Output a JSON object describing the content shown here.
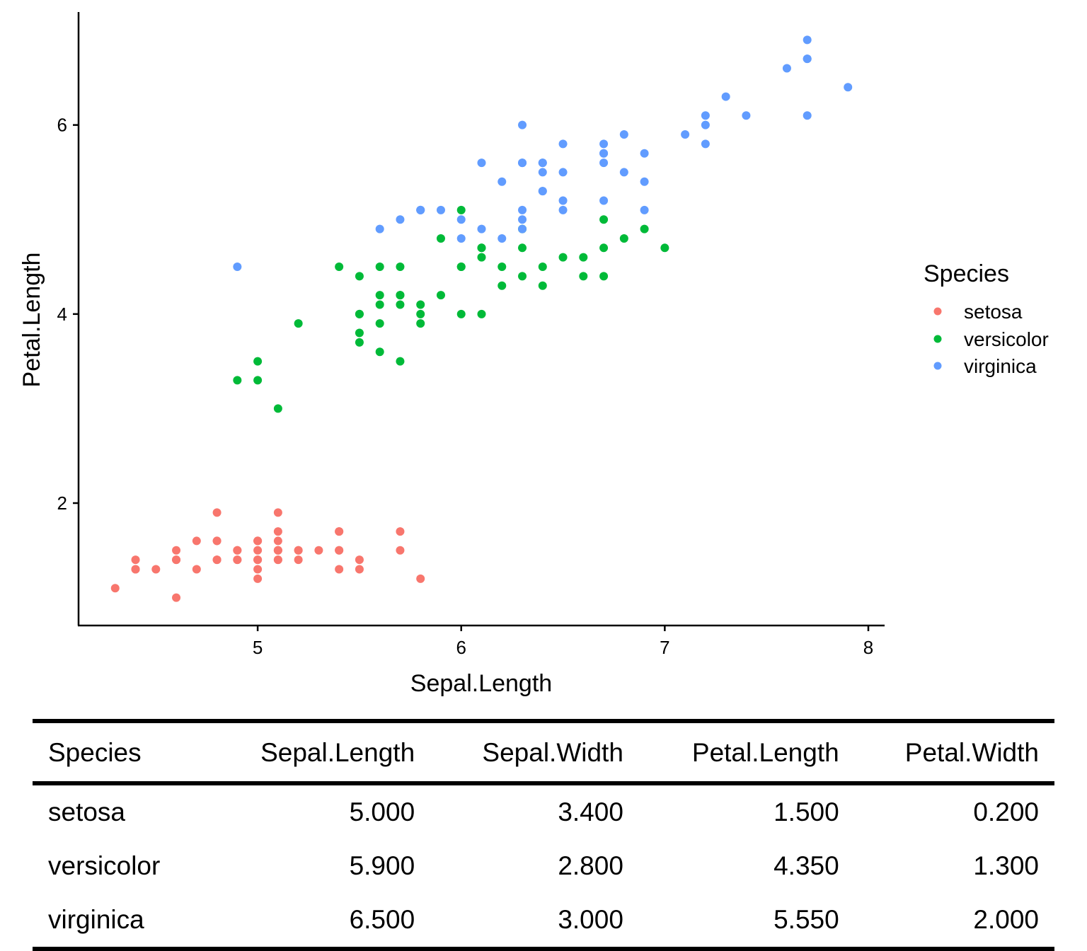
{
  "chart_data": {
    "type": "scatter",
    "xlabel": "Sepal.Length",
    "ylabel": "Petal.Length",
    "xlim": [
      4.12,
      8.08
    ],
    "ylim": [
      0.705,
      7.195
    ],
    "xticks": [
      "5",
      "6",
      "7",
      "8"
    ],
    "yticks": [
      "2",
      "4",
      "6"
    ],
    "grid": false,
    "legend": {
      "title": "Species",
      "placement": "right"
    },
    "series": [
      {
        "name": "setosa",
        "color": "#F8766D",
        "points": [
          [
            5.1,
            1.4
          ],
          [
            4.9,
            1.4
          ],
          [
            4.7,
            1.3
          ],
          [
            4.6,
            1.5
          ],
          [
            5.0,
            1.4
          ],
          [
            5.4,
            1.7
          ],
          [
            4.6,
            1.4
          ],
          [
            5.0,
            1.5
          ],
          [
            4.4,
            1.4
          ],
          [
            4.9,
            1.5
          ],
          [
            5.4,
            1.5
          ],
          [
            4.8,
            1.6
          ],
          [
            4.8,
            1.4
          ],
          [
            4.3,
            1.1
          ],
          [
            5.8,
            1.2
          ],
          [
            5.7,
            1.5
          ],
          [
            5.4,
            1.3
          ],
          [
            5.1,
            1.4
          ],
          [
            5.7,
            1.7
          ],
          [
            5.1,
            1.5
          ],
          [
            5.4,
            1.7
          ],
          [
            5.1,
            1.5
          ],
          [
            4.6,
            1.0
          ],
          [
            5.1,
            1.7
          ],
          [
            4.8,
            1.9
          ],
          [
            5.0,
            1.6
          ],
          [
            5.0,
            1.6
          ],
          [
            5.2,
            1.5
          ],
          [
            5.2,
            1.4
          ],
          [
            4.7,
            1.6
          ],
          [
            4.8,
            1.6
          ],
          [
            5.4,
            1.5
          ],
          [
            5.2,
            1.5
          ],
          [
            5.5,
            1.4
          ],
          [
            4.9,
            1.5
          ],
          [
            5.0,
            1.2
          ],
          [
            5.5,
            1.3
          ],
          [
            4.9,
            1.4
          ],
          [
            4.4,
            1.3
          ],
          [
            5.1,
            1.5
          ],
          [
            5.0,
            1.3
          ],
          [
            4.5,
            1.3
          ],
          [
            4.4,
            1.3
          ],
          [
            5.0,
            1.6
          ],
          [
            5.1,
            1.9
          ],
          [
            4.8,
            1.4
          ],
          [
            5.1,
            1.6
          ],
          [
            4.6,
            1.4
          ],
          [
            5.3,
            1.5
          ],
          [
            5.0,
            1.4
          ]
        ]
      },
      {
        "name": "versicolor",
        "color": "#00BA38",
        "points": [
          [
            7.0,
            4.7
          ],
          [
            6.4,
            4.5
          ],
          [
            6.9,
            4.9
          ],
          [
            5.5,
            4.0
          ],
          [
            6.5,
            4.6
          ],
          [
            5.7,
            4.5
          ],
          [
            6.3,
            4.7
          ],
          [
            4.9,
            3.3
          ],
          [
            6.6,
            4.6
          ],
          [
            5.2,
            3.9
          ],
          [
            5.0,
            3.5
          ],
          [
            5.9,
            4.2
          ],
          [
            6.0,
            4.0
          ],
          [
            6.1,
            4.7
          ],
          [
            5.6,
            3.6
          ],
          [
            6.7,
            4.4
          ],
          [
            5.6,
            4.5
          ],
          [
            5.8,
            4.1
          ],
          [
            6.2,
            4.5
          ],
          [
            5.6,
            3.9
          ],
          [
            5.9,
            4.8
          ],
          [
            6.1,
            4.0
          ],
          [
            6.3,
            4.9
          ],
          [
            6.1,
            4.7
          ],
          [
            6.4,
            4.3
          ],
          [
            6.6,
            4.4
          ],
          [
            6.8,
            4.8
          ],
          [
            6.7,
            5.0
          ],
          [
            6.0,
            4.5
          ],
          [
            5.7,
            3.5
          ],
          [
            5.5,
            3.8
          ],
          [
            5.5,
            3.7
          ],
          [
            5.8,
            3.9
          ],
          [
            6.0,
            5.1
          ],
          [
            5.4,
            4.5
          ],
          [
            6.0,
            4.5
          ],
          [
            6.7,
            4.7
          ],
          [
            6.3,
            4.4
          ],
          [
            5.6,
            4.1
          ],
          [
            5.5,
            4.0
          ],
          [
            5.5,
            4.4
          ],
          [
            6.1,
            4.6
          ],
          [
            5.8,
            4.0
          ],
          [
            5.0,
            3.3
          ],
          [
            5.6,
            4.2
          ],
          [
            5.7,
            4.2
          ],
          [
            5.7,
            4.2
          ],
          [
            6.2,
            4.3
          ],
          [
            5.1,
            3.0
          ],
          [
            5.7,
            4.1
          ]
        ]
      },
      {
        "name": "virginica",
        "color": "#619CFF",
        "points": [
          [
            6.3,
            6.0
          ],
          [
            5.8,
            5.1
          ],
          [
            7.1,
            5.9
          ],
          [
            6.3,
            5.6
          ],
          [
            6.5,
            5.8
          ],
          [
            7.6,
            6.6
          ],
          [
            4.9,
            4.5
          ],
          [
            7.3,
            6.3
          ],
          [
            6.7,
            5.8
          ],
          [
            7.2,
            6.1
          ],
          [
            6.5,
            5.1
          ],
          [
            6.4,
            5.3
          ],
          [
            6.8,
            5.5
          ],
          [
            5.7,
            5.0
          ],
          [
            5.8,
            5.1
          ],
          [
            6.4,
            5.3
          ],
          [
            6.5,
            5.5
          ],
          [
            7.7,
            6.7
          ],
          [
            7.7,
            6.9
          ],
          [
            6.0,
            5.0
          ],
          [
            6.9,
            5.7
          ],
          [
            5.6,
            4.9
          ],
          [
            7.7,
            6.7
          ],
          [
            6.3,
            4.9
          ],
          [
            6.7,
            5.7
          ],
          [
            7.2,
            6.0
          ],
          [
            6.2,
            4.8
          ],
          [
            6.1,
            4.9
          ],
          [
            6.4,
            5.6
          ],
          [
            7.2,
            5.8
          ],
          [
            7.4,
            6.1
          ],
          [
            7.9,
            6.4
          ],
          [
            6.4,
            5.6
          ],
          [
            6.3,
            5.1
          ],
          [
            6.1,
            5.6
          ],
          [
            7.7,
            6.1
          ],
          [
            6.3,
            5.6
          ],
          [
            6.4,
            5.5
          ],
          [
            6.0,
            4.8
          ],
          [
            6.9,
            5.4
          ],
          [
            6.7,
            5.6
          ],
          [
            6.9,
            5.1
          ],
          [
            5.8,
            5.1
          ],
          [
            6.8,
            5.9
          ],
          [
            6.7,
            5.7
          ],
          [
            6.7,
            5.2
          ],
          [
            6.3,
            5.0
          ],
          [
            6.5,
            5.2
          ],
          [
            6.2,
            5.4
          ],
          [
            5.9,
            5.1
          ]
        ]
      }
    ]
  },
  "table": {
    "headers": [
      "Species",
      "Sepal.Length",
      "Sepal.Width",
      "Petal.Length",
      "Petal.Width"
    ],
    "rows": [
      [
        "setosa",
        "5.000",
        "3.400",
        "1.500",
        "0.200"
      ],
      [
        "versicolor",
        "5.900",
        "2.800",
        "4.350",
        "1.300"
      ],
      [
        "virginica",
        "6.500",
        "3.000",
        "5.550",
        "2.000"
      ]
    ]
  }
}
